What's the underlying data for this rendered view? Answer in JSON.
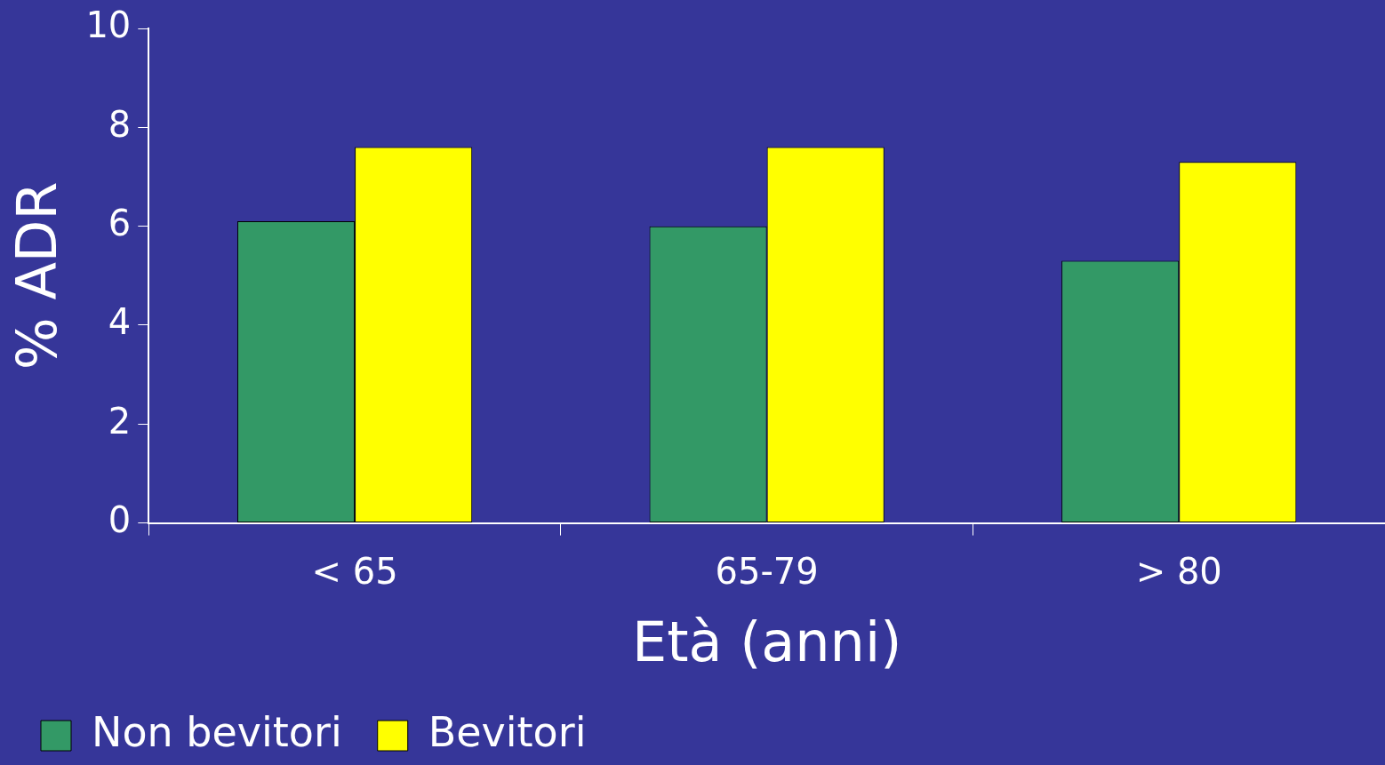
{
  "chart_data": {
    "type": "bar",
    "xlabel": "Età (anni)",
    "ylabel": "% ADR",
    "categories": [
      "< 65",
      "65-79",
      "> 80"
    ],
    "series": [
      {
        "name": "Non bevitori",
        "color": "#339966",
        "values": [
          6.1,
          6.0,
          5.3
        ]
      },
      {
        "name": "Bevitori",
        "color": "#ffff00",
        "values": [
          7.6,
          7.6,
          7.3
        ]
      }
    ],
    "ylim": [
      0,
      10
    ],
    "yticks": [
      0,
      2,
      4,
      6,
      8,
      10
    ],
    "grid": false,
    "legend": "bottom left"
  }
}
